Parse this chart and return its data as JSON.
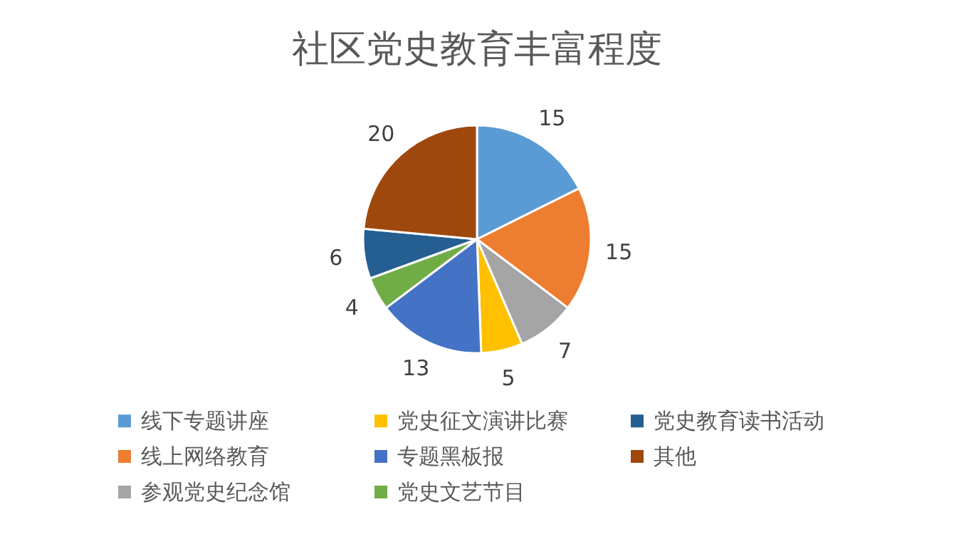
{
  "chart_data": {
    "type": "pie",
    "title": "社区党史教育丰富程度",
    "categories": [
      "线下专题讲座",
      "线上网络教育",
      "参观党史纪念馆",
      "党史征文演讲比赛",
      "专题黑板报",
      "党史文艺节目",
      "党史教育读书活动",
      "其他"
    ],
    "values": [
      15,
      15,
      7,
      5,
      13,
      4,
      6,
      20
    ],
    "colors": [
      "#5b9bd5",
      "#ed7d31",
      "#a5a5a5",
      "#ffc000",
      "#4472c4",
      "#70ad47",
      "#255e91",
      "#9e480e"
    ],
    "data_labels": true,
    "legend": "bottom"
  }
}
